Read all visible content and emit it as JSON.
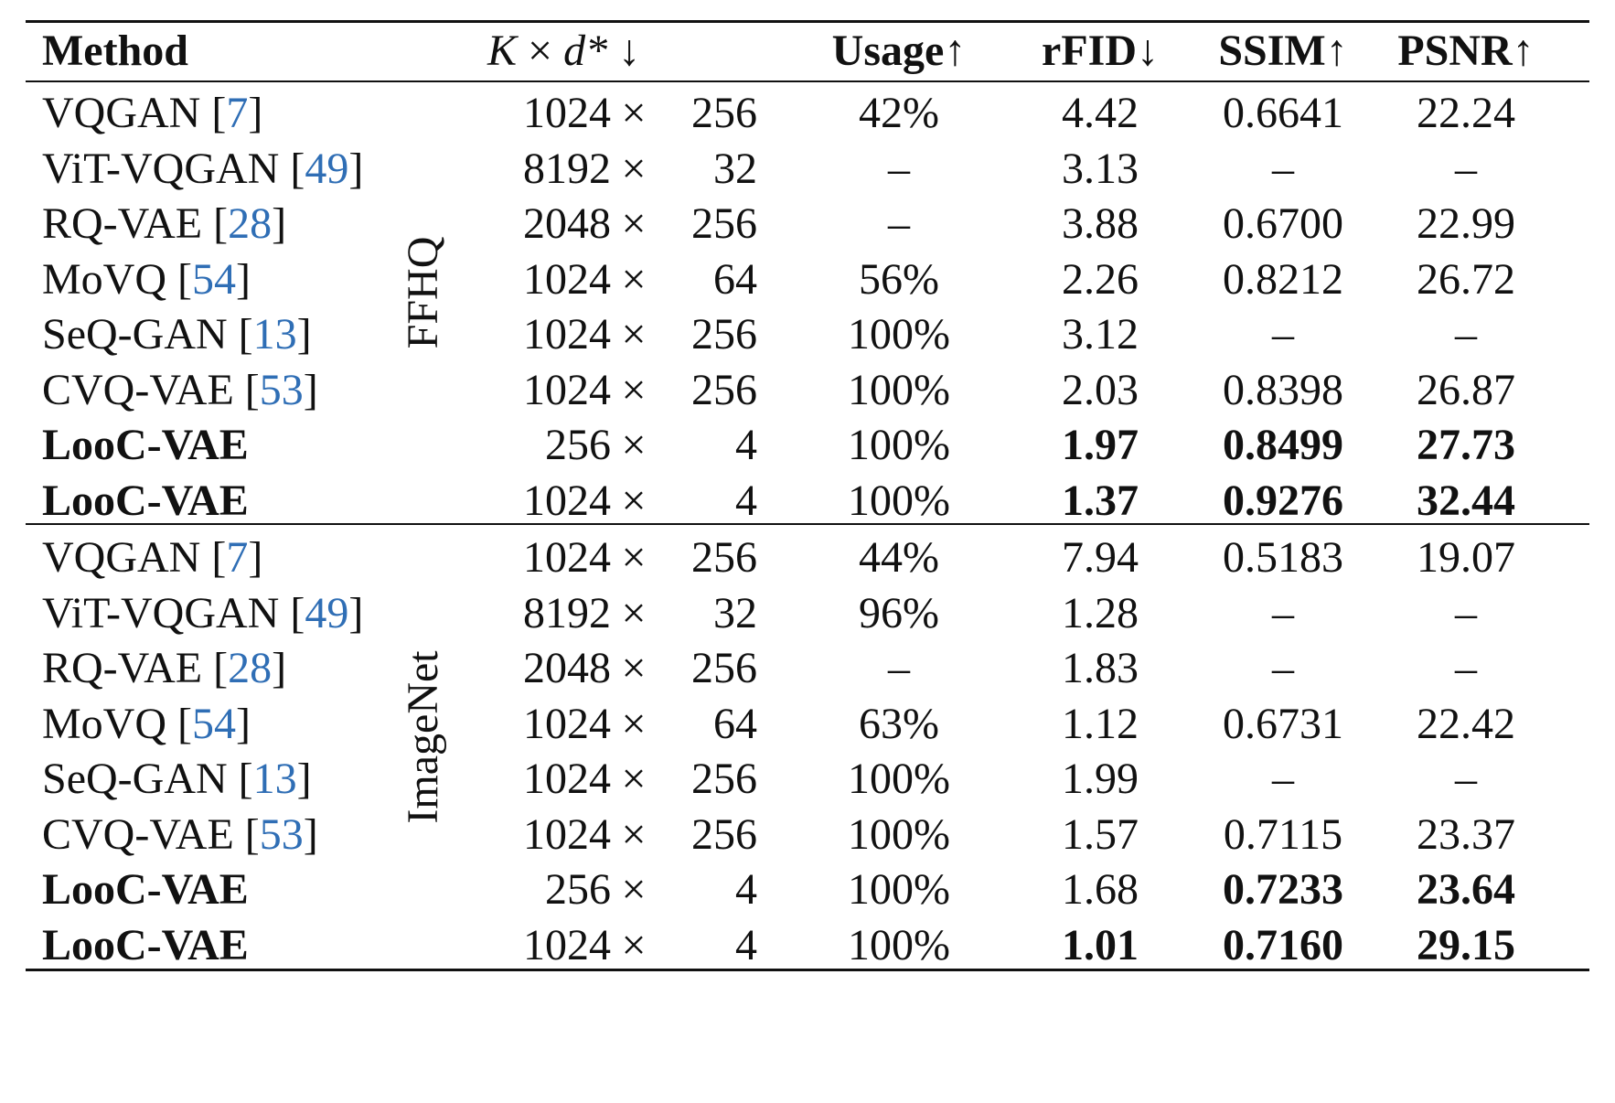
{
  "header": {
    "method": "Method",
    "k_label": "K",
    "times": "×",
    "d_label": "d*",
    "k_arrow": "↓",
    "usage": "Usage↑",
    "rfid": "rFID↓",
    "ssim": "SSIM↑",
    "psnr": "PSNR↑"
  },
  "groups": [
    {
      "label": "FFHQ",
      "rows": [
        {
          "name": "VQGAN",
          "cite": "7",
          "k": "1024",
          "d": "256",
          "usage": "42%",
          "rfid": "4.42",
          "ssim": "0.6641",
          "psnr": "22.24",
          "bold": false
        },
        {
          "name": "ViT-VQGAN",
          "cite": "49",
          "k": "8192",
          "d": "32",
          "usage": "–",
          "rfid": "3.13",
          "ssim": "–",
          "psnr": "–",
          "bold": false
        },
        {
          "name": "RQ-VAE",
          "cite": "28",
          "k": "2048",
          "d": "256",
          "usage": "–",
          "rfid": "3.88",
          "ssim": "0.6700",
          "psnr": "22.99",
          "bold": false
        },
        {
          "name": "MoVQ",
          "cite": "54",
          "k": "1024",
          "d": "64",
          "usage": "56%",
          "rfid": "2.26",
          "ssim": "0.8212",
          "psnr": "26.72",
          "bold": false
        },
        {
          "name": "SeQ-GAN",
          "cite": "13",
          "k": "1024",
          "d": "256",
          "usage": "100%",
          "rfid": "3.12",
          "ssim": "–",
          "psnr": "–",
          "bold": false
        },
        {
          "name": "CVQ-VAE",
          "cite": "53",
          "k": "1024",
          "d": "256",
          "usage": "100%",
          "rfid": "2.03",
          "ssim": "0.8398",
          "psnr": "26.87",
          "bold": false
        },
        {
          "name": "LooC-VAE",
          "cite": "",
          "k": "256",
          "d": "4",
          "usage": "100%",
          "rfid": "1.97",
          "ssim": "0.8499",
          "psnr": "27.73",
          "bold": true,
          "bold_cols": [
            "rfid",
            "ssim",
            "psnr"
          ]
        },
        {
          "name": "LooC-VAE",
          "cite": "",
          "k": "1024",
          "d": "4",
          "usage": "100%",
          "rfid": "1.37",
          "ssim": "0.9276",
          "psnr": "32.44",
          "bold": true,
          "bold_cols": [
            "rfid",
            "ssim",
            "psnr"
          ]
        }
      ]
    },
    {
      "label": "ImageNet",
      "rows": [
        {
          "name": "VQGAN",
          "cite": "7",
          "k": "1024",
          "d": "256",
          "usage": "44%",
          "rfid": "7.94",
          "ssim": "0.5183",
          "psnr": "19.07",
          "bold": false
        },
        {
          "name": "ViT-VQGAN",
          "cite": "49",
          "k": "8192",
          "d": "32",
          "usage": "96%",
          "rfid": "1.28",
          "ssim": "–",
          "psnr": "–",
          "bold": false
        },
        {
          "name": "RQ-VAE",
          "cite": "28",
          "k": "2048",
          "d": "256",
          "usage": "–",
          "rfid": "1.83",
          "ssim": "–",
          "psnr": "–",
          "bold": false
        },
        {
          "name": "MoVQ",
          "cite": "54",
          "k": "1024",
          "d": "64",
          "usage": "63%",
          "rfid": "1.12",
          "ssim": "0.6731",
          "psnr": "22.42",
          "bold": false
        },
        {
          "name": "SeQ-GAN",
          "cite": "13",
          "k": "1024",
          "d": "256",
          "usage": "100%",
          "rfid": "1.99",
          "ssim": "–",
          "psnr": "–",
          "bold": false
        },
        {
          "name": "CVQ-VAE",
          "cite": "53",
          "k": "1024",
          "d": "256",
          "usage": "100%",
          "rfid": "1.57",
          "ssim": "0.7115",
          "psnr": "23.37",
          "bold": false
        },
        {
          "name": "LooC-VAE",
          "cite": "",
          "k": "256",
          "d": "4",
          "usage": "100%",
          "rfid": "1.68",
          "ssim": "0.7233",
          "psnr": "23.64",
          "bold": true,
          "bold_cols": [
            "ssim",
            "psnr"
          ]
        },
        {
          "name": "LooC-VAE",
          "cite": "",
          "k": "1024",
          "d": "4",
          "usage": "100%",
          "rfid": "1.01",
          "ssim": "0.7160",
          "psnr": "29.15",
          "bold": true,
          "bold_cols": [
            "rfid",
            "ssim",
            "psnr"
          ]
        }
      ]
    }
  ]
}
